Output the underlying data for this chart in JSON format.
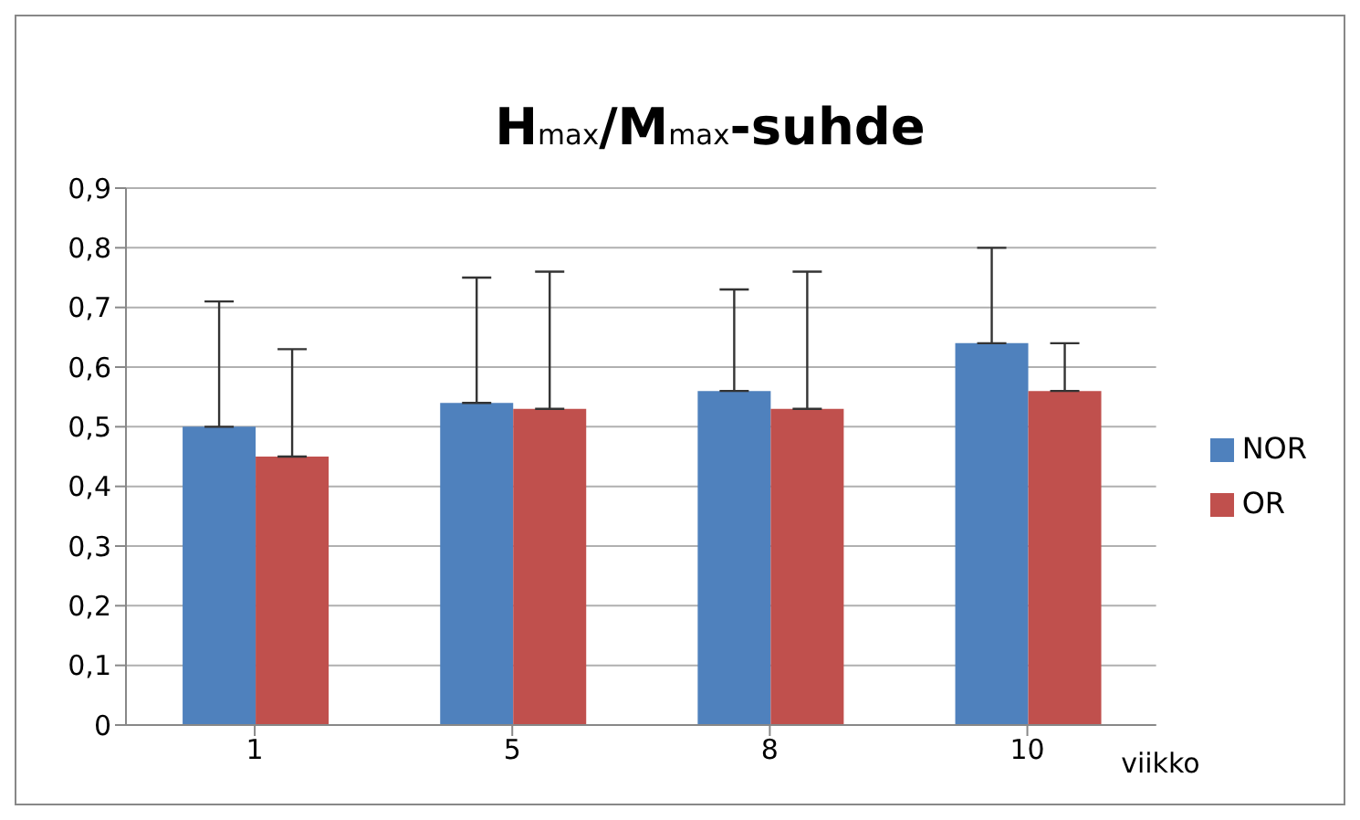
{
  "chart_data": {
    "type": "bar",
    "title": "H$_{max}$/M$_{max}$-suhde",
    "xlabel": "viikko",
    "categories": [
      "1",
      "5",
      "8",
      "10"
    ],
    "series": [
      {
        "name": "NOR",
        "color": "#4f81bd",
        "values": [
          0.5,
          0.54,
          0.56,
          0.64
        ],
        "errors": [
          [
            0.5,
            0.71
          ],
          [
            0.54,
            0.75
          ],
          [
            0.56,
            0.73
          ],
          [
            0.64,
            0.8
          ]
        ]
      },
      {
        "name": "OR",
        "color": "#c0504d",
        "values": [
          0.45,
          0.53,
          0.53,
          0.56
        ],
        "errors": [
          [
            0.45,
            0.63
          ],
          [
            0.53,
            0.76
          ],
          [
            0.53,
            0.76
          ],
          [
            0.56,
            0.64
          ]
        ]
      }
    ],
    "ylim": [
      0,
      0.9
    ],
    "yticks": [
      0,
      {
        "value": 0.1,
        "label": "0,1"
      },
      {
        "value": 0.2,
        "label": "0,2"
      },
      {
        "value": 0.3,
        "label": "0,3"
      },
      {
        "value": 0.4,
        "label": "0,4"
      },
      {
        "value": 0.5,
        "label": "0,5"
      },
      {
        "value": 0.6,
        "label": "0,6"
      },
      {
        "value": 0.7,
        "label": "0,7"
      },
      {
        "value": 0.8,
        "label": "0,8"
      },
      {
        "value": 0.9,
        "label": "0,9"
      }
    ],
    "grid": "y",
    "legend": "right"
  }
}
